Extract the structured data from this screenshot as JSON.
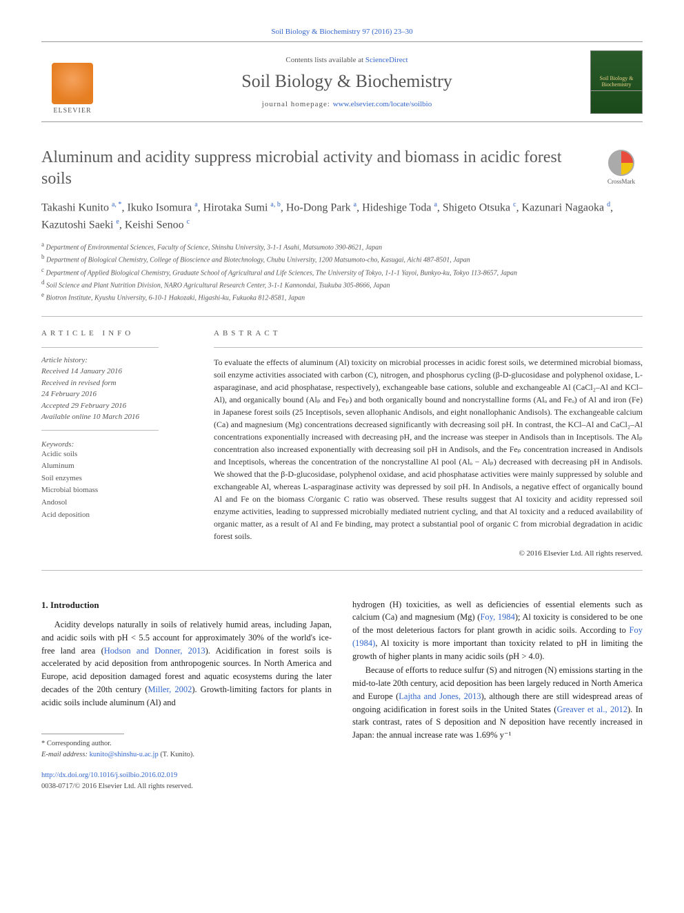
{
  "header": {
    "citation": "Soil Biology & Biochemistry 97 (2016) 23–30",
    "contents_prefix": "Contents lists available at ",
    "contents_link": "ScienceDirect",
    "journal_name": "Soil Biology & Biochemistry",
    "homepage_prefix": "journal homepage: ",
    "homepage_link": "www.elsevier.com/locate/soilbio",
    "publisher_logo_text": "ELSEVIER",
    "journal_logo_top": "Soil Biology & Biochemistry",
    "crossmark_label": "CrossMark"
  },
  "article": {
    "title": "Aluminum and acidity suppress microbial activity and biomass in acidic forest soils",
    "authors_html": "Takashi Kunito <sup>a, *</sup>, Ikuko Isomura <sup>a</sup>, Hirotaka Sumi <sup>a, b</sup>, Ho-Dong Park <sup>a</sup>, Hideshige Toda <sup>a</sup>, Shigeto Otsuka <sup>c</sup>, Kazunari Nagaoka <sup>d</sup>, Kazutoshi Saeki <sup>e</sup>, Keishi Senoo <sup>c</sup>",
    "affiliations": [
      {
        "sup": "a",
        "text": "Department of Environmental Sciences, Faculty of Science, Shinshu University, 3-1-1 Asahi, Matsumoto 390-8621, Japan"
      },
      {
        "sup": "b",
        "text": "Department of Biological Chemistry, College of Bioscience and Biotechnology, Chubu University, 1200 Matsumoto-cho, Kasugai, Aichi 487-8501, Japan"
      },
      {
        "sup": "c",
        "text": "Department of Applied Biological Chemistry, Graduate School of Agricultural and Life Sciences, The University of Tokyo, 1-1-1 Yayoi, Bunkyo-ku, Tokyo 113-8657, Japan"
      },
      {
        "sup": "d",
        "text": "Soil Science and Plant Nutrition Division, NARO Agricultural Research Center, 3-1-1 Kannondai, Tsukuba 305-8666, Japan"
      },
      {
        "sup": "e",
        "text": "Biotron Institute, Kyushu University, 6-10-1 Hakozaki, Higashi-ku, Fukuoka 812-8581, Japan"
      }
    ]
  },
  "info": {
    "section_label": "ARTICLE INFO",
    "history_label": "Article history:",
    "history_lines": [
      "Received 14 January 2016",
      "Received in revised form",
      "24 February 2016",
      "Accepted 29 February 2016",
      "Available online 10 March 2016"
    ],
    "keywords_label": "Keywords:",
    "keywords": [
      "Acidic soils",
      "Aluminum",
      "Soil enzymes",
      "Microbial biomass",
      "Andosol",
      "Acid deposition"
    ]
  },
  "abstract": {
    "label": "ABSTRACT",
    "text": "To evaluate the effects of aluminum (Al) toxicity on microbial processes in acidic forest soils, we determined microbial biomass, soil enzyme activities associated with carbon (C), nitrogen, and phosphorus cycling (β-D-glucosidase and polyphenol oxidase, L-asparaginase, and acid phosphatase, respectively), exchangeable base cations, soluble and exchangeable Al (CaCl₂–Al and KCl–Al), and organically bound (Alₚ and Feₚ) and both organically bound and noncrystalline forms (Alₒ and Feₒ) of Al and iron (Fe) in Japanese forest soils (25 Inceptisols, seven allophanic Andisols, and eight nonallophanic Andisols). The exchangeable calcium (Ca) and magnesium (Mg) concentrations decreased significantly with decreasing soil pH. In contrast, the KCl–Al and CaCl₂–Al concentrations exponentially increased with decreasing pH, and the increase was steeper in Andisols than in Inceptisols. The Alₚ concentration also increased exponentially with decreasing soil pH in Andisols, and the Feₚ concentration increased in Andisols and Inceptisols, whereas the concentration of the noncrystalline Al pool (Alₒ − Alₚ) decreased with decreasing pH in Andisols. We showed that the β-D-glucosidase, polyphenol oxidase, and acid phosphatase activities were mainly suppressed by soluble and exchangeable Al, whereas L-asparaginase activity was depressed by soil pH. In Andisols, a negative effect of organically bound Al and Fe on the biomass C/organic C ratio was observed. These results suggest that Al toxicity and acidity repressed soil enzyme activities, leading to suppressed microbially mediated nutrient cycling, and that Al toxicity and a reduced availability of organic matter, as a result of Al and Fe binding, may protect a substantial pool of organic C from microbial degradation in acidic forest soils.",
    "copyright": "© 2016 Elsevier Ltd. All rights reserved."
  },
  "body": {
    "heading": "1. Introduction",
    "para1_pre": "Acidity develops naturally in soils of relatively humid areas, including Japan, and acidic soils with pH < 5.5 account for approximately 30% of the world's ice-free land area (",
    "para1_link1": "Hodson and Donner, 2013",
    "para1_mid1": "). Acidification in forest soils is accelerated by acid deposition from anthropogenic sources. In North America and Europe, acid deposition damaged forest and aquatic ecosystems during the later decades of the 20th century (",
    "para1_link2": "Miller, 2002",
    "para1_post": "). Growth-limiting factors for plants in acidic soils include aluminum (Al) and",
    "para2_pre": "hydrogen (H) toxicities, as well as deficiencies of essential elements such as calcium (Ca) and magnesium (Mg) (",
    "para2_link1": "Foy, 1984",
    "para2_mid1": "); Al toxicity is considered to be one of the most deleterious factors for plant growth in acidic soils. According to ",
    "para2_link2": "Foy (1984)",
    "para2_post": ", Al toxicity is more important than toxicity related to pH in limiting the growth of higher plants in many acidic soils (pH > 4.0).",
    "para3_pre": "Because of efforts to reduce sulfur (S) and nitrogen (N) emissions starting in the mid-to-late 20th century, acid deposition has been largely reduced in North America and Europe (",
    "para3_link1": "Lajtha and Jones, 2013",
    "para3_mid1": "), although there are still widespread areas of ongoing acidification in forest soils in the United States (",
    "para3_link2": "Greaver et al., 2012",
    "para3_post": "). In stark contrast, rates of S deposition and N deposition have recently increased in Japan: the annual increase rate was 1.69% y⁻¹"
  },
  "footnotes": {
    "corr_label": "* Corresponding author.",
    "email_label": "E-mail address: ",
    "email": "kunito@shinshu-u.ac.jp",
    "email_author": " (T. Kunito).",
    "doi": "http://dx.doi.org/10.1016/j.soilbio.2016.02.019",
    "issn_line": "0038-0717/© 2016 Elsevier Ltd. All rights reserved."
  },
  "colors": {
    "link": "#3366cc",
    "text_muted": "#555555",
    "rule": "#bbbbbb"
  }
}
